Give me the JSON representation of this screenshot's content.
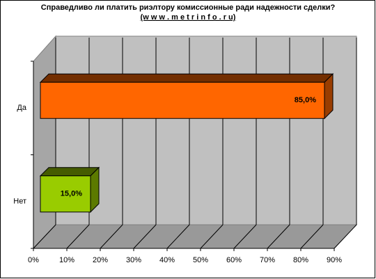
{
  "chart_data": {
    "type": "bar",
    "orientation": "horizontal",
    "title": "Справедливо ли платить риэлтору комиссионные ради надежности сделки?",
    "subtitle": "(w w w . m e t r i n f o . r u)",
    "categories": [
      "Да",
      "Нет"
    ],
    "values": [
      85,
      15
    ],
    "value_labels": [
      "85,0%",
      "15,0%"
    ],
    "colors": [
      "#ff6600",
      "#99cc00"
    ],
    "xlim": [
      0,
      90
    ],
    "xticks": [
      {
        "value": 0,
        "label": "0%"
      },
      {
        "value": 10,
        "label": "10%"
      },
      {
        "value": 20,
        "label": "20%"
      },
      {
        "value": 30,
        "label": "30%"
      },
      {
        "value": 40,
        "label": "40%"
      },
      {
        "value": 50,
        "label": "50%"
      },
      {
        "value": 60,
        "label": "60%"
      },
      {
        "value": 70,
        "label": "70%"
      },
      {
        "value": 80,
        "label": "80%"
      },
      {
        "value": 90,
        "label": "90%"
      }
    ],
    "grid": true
  }
}
